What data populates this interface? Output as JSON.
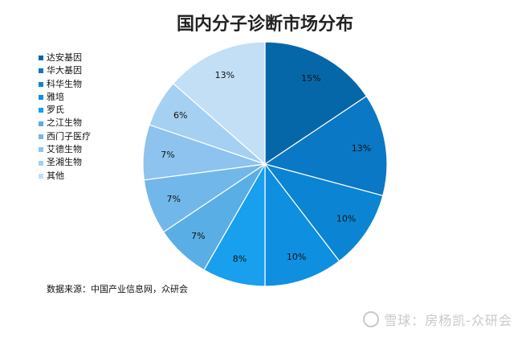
{
  "chart_data": {
    "type": "pie",
    "title": "国内分子诊断市场分布",
    "categories": [
      "达安基因",
      "华大基因",
      "科华生物",
      "雅培",
      "罗氏",
      "之江生物",
      "西门子医疗",
      "艾德生物",
      "圣湘生物",
      "其他"
    ],
    "values": [
      15,
      13,
      10,
      10,
      8,
      7,
      7,
      7,
      6,
      13
    ],
    "labels": [
      "15%",
      "13%",
      "10%",
      "10%",
      "8%",
      "7%",
      "7%",
      "7%",
      "6%",
      "13%"
    ],
    "colors": [
      "#0667a8",
      "#0a78c4",
      "#0b85d3",
      "#0f8fe0",
      "#18a0ef",
      "#5aaee6",
      "#72b7ea",
      "#8dc3ee",
      "#a5d0f2",
      "#c3dff6"
    ],
    "legend_position": "left"
  },
  "footer": {
    "source": "数据来源：中国产业信息网，众研会",
    "watermark": "雪球：房杨凯-众研会"
  }
}
